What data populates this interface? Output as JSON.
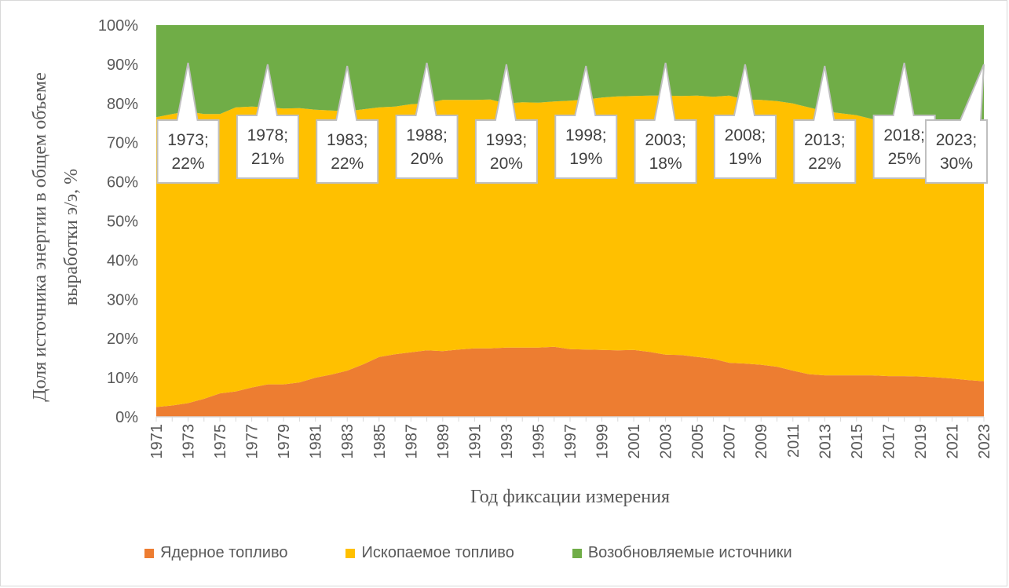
{
  "chart_data": {
    "type": "area",
    "stacked": true,
    "percent_stacked": true,
    "title": "",
    "xlabel": "Год фиксации измерения",
    "ylabel": "Доля источника энергии в общем объеме выработки э/э, %",
    "ylabel_lines": [
      "Доля источника энергии в общем объеме",
      "выработки э/э, %"
    ],
    "ylim": [
      0,
      100
    ],
    "yticks": [
      "0%",
      "10%",
      "20%",
      "30%",
      "40%",
      "50%",
      "60%",
      "70%",
      "80%",
      "90%",
      "100%"
    ],
    "x": [
      1971,
      1972,
      1973,
      1974,
      1975,
      1976,
      1977,
      1978,
      1979,
      1980,
      1981,
      1982,
      1983,
      1984,
      1985,
      1986,
      1987,
      1988,
      1989,
      1990,
      1991,
      1992,
      1993,
      1994,
      1995,
      1996,
      1997,
      1998,
      1999,
      2000,
      2001,
      2002,
      2003,
      2004,
      2005,
      2006,
      2007,
      2008,
      2009,
      2010,
      2011,
      2012,
      2013,
      2014,
      2015,
      2016,
      2017,
      2018,
      2019,
      2020,
      2021,
      2022,
      2023
    ],
    "xtick_labels": [
      "1971",
      "1973",
      "1975",
      "1977",
      "1979",
      "1981",
      "1983",
      "1985",
      "1987",
      "1989",
      "1991",
      "1993",
      "1995",
      "1997",
      "1999",
      "2001",
      "2003",
      "2005",
      "2007",
      "2009",
      "2011",
      "2013",
      "2015",
      "2017",
      "2019",
      "2021",
      "2023"
    ],
    "series": [
      {
        "name": "Ядерное топливо",
        "color": "#ED7D31",
        "values": [
          2.5,
          2.9,
          3.5,
          4.6,
          6.0,
          6.5,
          7.5,
          8.3,
          8.3,
          8.8,
          10.0,
          10.8,
          11.8,
          13.4,
          15.3,
          16.0,
          16.5,
          17.0,
          16.8,
          17.2,
          17.5,
          17.5,
          17.7,
          17.7,
          17.7,
          17.9,
          17.3,
          17.2,
          17.1,
          17.0,
          17.1,
          16.6,
          15.9,
          15.8,
          15.3,
          14.8,
          13.8,
          13.6,
          13.3,
          12.8,
          11.8,
          10.9,
          10.6,
          10.6,
          10.6,
          10.6,
          10.4,
          10.4,
          10.3,
          10.1,
          9.8,
          9.4,
          9.1
        ]
      },
      {
        "name": "Ископаемое топливо",
        "color": "#FFC000",
        "values": [
          74.0,
          74.4,
          74.5,
          72.7,
          71.3,
          72.5,
          71.7,
          70.7,
          70.4,
          70.0,
          68.4,
          67.4,
          66.2,
          65.1,
          63.7,
          63.2,
          63.3,
          63.0,
          64.1,
          63.7,
          63.4,
          63.5,
          62.3,
          62.6,
          62.5,
          62.6,
          63.4,
          63.8,
          64.4,
          64.8,
          64.8,
          65.4,
          66.1,
          66.1,
          66.7,
          66.9,
          68.2,
          67.4,
          67.6,
          67.8,
          68.2,
          68.1,
          67.4,
          66.9,
          66.4,
          65.4,
          64.9,
          64.6,
          63.7,
          62.0,
          62.2,
          61.9,
          60.9
        ]
      },
      {
        "name": "Возобновляемые источники",
        "color": "#70AD47",
        "values": [
          23.5,
          22.7,
          22.0,
          22.7,
          22.7,
          21.0,
          20.8,
          21.0,
          21.3,
          21.2,
          21.6,
          21.8,
          22.0,
          21.5,
          21.0,
          20.8,
          20.2,
          20.0,
          19.1,
          19.1,
          19.1,
          19.0,
          20.0,
          19.7,
          19.8,
          19.5,
          19.3,
          19.0,
          18.5,
          18.2,
          18.1,
          18.0,
          18.0,
          18.1,
          18.0,
          18.3,
          18.0,
          19.0,
          19.1,
          19.4,
          20.0,
          21.0,
          22.0,
          22.5,
          23.0,
          24.0,
          24.7,
          25.0,
          26.0,
          27.9,
          28.0,
          28.7,
          30.0
        ]
      }
    ],
    "annotations": [
      {
        "label_year": "1973;",
        "label_value": "22%"
      },
      {
        "label_year": "1978;",
        "label_value": "21%"
      },
      {
        "label_year": "1983;",
        "label_value": "22%"
      },
      {
        "label_year": "1988;",
        "label_value": "20%"
      },
      {
        "label_year": "1993;",
        "label_value": "20%"
      },
      {
        "label_year": "1998;",
        "label_value": "19%"
      },
      {
        "label_year": "2003;",
        "label_value": "18%"
      },
      {
        "label_year": "2008;",
        "label_value": "19%"
      },
      {
        "label_year": "2013;",
        "label_value": "22%"
      },
      {
        "label_year": "2018;",
        "label_value": "25%"
      },
      {
        "label_year": "2023;",
        "label_value": "30%"
      }
    ],
    "annotation_series": "Возобновляемые источники",
    "legend": {
      "position": "bottom",
      "items": [
        {
          "label": "Ядерное топливо",
          "color": "#ED7D31"
        },
        {
          "label": "Ископаемое топливо",
          "color": "#FFC000"
        },
        {
          "label": "Возобновляемые источники",
          "color": "#70AD47"
        }
      ]
    },
    "grid": false
  }
}
